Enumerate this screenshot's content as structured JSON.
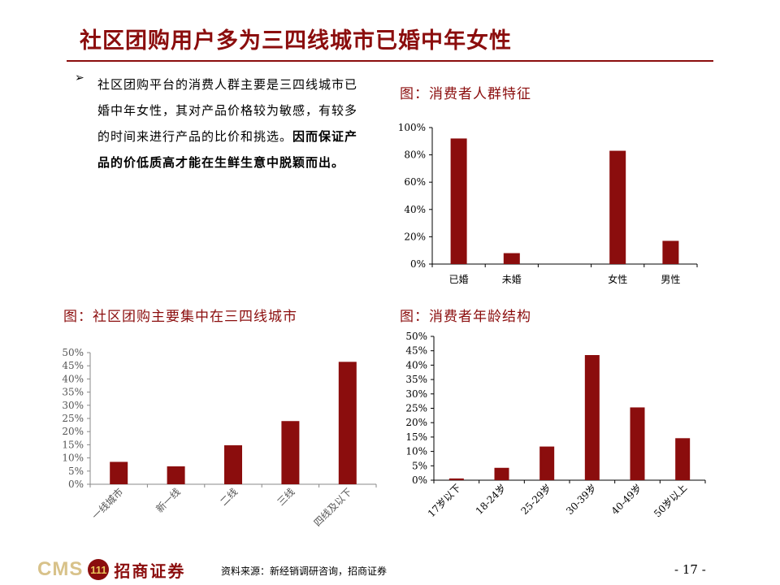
{
  "title": "社区团购用户多为三四线城市已婚中年女性",
  "bullet_symbol": "➢",
  "body": {
    "normal": "社区团购平台的消费人群主要是三四线城市已婚中年女性，其对产品价格较为敏感，有较多的时间来进行产品的比价和挑选。",
    "bold": "因而保证产品的价低质高才能在生鲜生意中脱颖而出。"
  },
  "figures": {
    "fig1": "图：消费者人群特征",
    "fig2": "图：社区团购主要集中在三四线城市",
    "fig3": "图：消费者年龄结构"
  },
  "colors": {
    "accent": "#8b0d0d",
    "bar": "#8b0d0d"
  },
  "chart_data": [
    {
      "type": "bar",
      "categories": [
        "已婚",
        "未婚",
        "",
        "女性",
        "男性"
      ],
      "values": [
        92,
        8,
        null,
        83,
        17
      ],
      "ylim": [
        0,
        100
      ],
      "yticks": [
        "0%",
        "20%",
        "40%",
        "60%",
        "80%",
        "100%"
      ],
      "grid": false
    },
    {
      "type": "bar",
      "categories": [
        "一线城市",
        "新一线",
        "二线",
        "三线",
        "四线及以下"
      ],
      "values": [
        8.5,
        6.8,
        14.8,
        24,
        46.5
      ],
      "ylim": [
        0,
        50
      ],
      "yticks": [
        "0%",
        "5%",
        "10%",
        "15%",
        "20%",
        "25%",
        "30%",
        "35%",
        "40%",
        "45%",
        "50%"
      ],
      "grid": false
    },
    {
      "type": "bar",
      "categories": [
        "17岁以下",
        "18-24岁",
        "25-29岁",
        "30-39岁",
        "40-49岁",
        "50岁以上"
      ],
      "values": [
        0.6,
        4.3,
        11.7,
        43.5,
        25.3,
        14.6
      ],
      "ylim": [
        0,
        50
      ],
      "yticks": [
        "0%",
        "5%",
        "10%",
        "15%",
        "20%",
        "25%",
        "30%",
        "35%",
        "40%",
        "45%",
        "50%"
      ],
      "grid": false
    }
  ],
  "footer": {
    "logo_text": "CMS",
    "logo_badge": "111",
    "logo_cn": "招商证券",
    "source": "资料来源：新经销调研咨询，招商证券",
    "page": "- 17 -"
  }
}
